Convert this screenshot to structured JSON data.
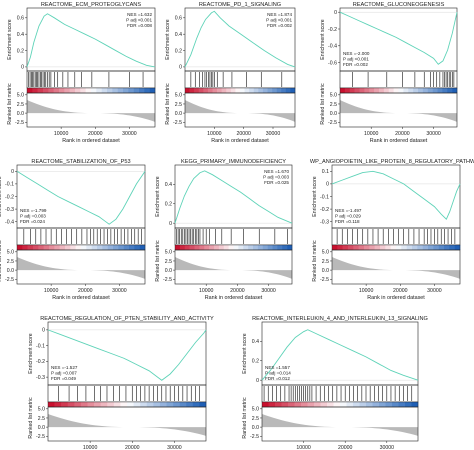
{
  "colors": {
    "curve": "#5fd3b8",
    "pos": "#c8102e",
    "neg": "#1f5fb5",
    "metric": "#b9b9b9",
    "frame": "#222222"
  },
  "shared": {
    "es_label": "Enrichment score",
    "metric_label": "Ranked list metric",
    "x_label": "Rank in ordered dataset",
    "x_ticks": [
      10000,
      20000,
      30000
    ],
    "x_tick_labels": [
      "10000",
      "20000",
      "30000"
    ],
    "metric_ticks": [
      "5.0",
      "2.5",
      "0.0",
      "-2.5"
    ]
  },
  "chart_data": [
    {
      "type": "line",
      "title": "REACTOME_ECM_PROTEOGLYCANS",
      "stats": [
        "NES =1.632",
        "P adj <0.001",
        "FDR =0.008"
      ],
      "y_ticks": [
        0.0,
        0.2,
        0.4,
        0.6
      ],
      "ylim": [
        -0.05,
        0.72
      ],
      "running_es": [
        [
          0,
          0
        ],
        [
          1000,
          0.12
        ],
        [
          2000,
          0.3
        ],
        [
          3500,
          0.5
        ],
        [
          5000,
          0.62
        ],
        [
          6000,
          0.65
        ],
        [
          8000,
          0.6
        ],
        [
          11000,
          0.52
        ],
        [
          14000,
          0.46
        ],
        [
          17000,
          0.4
        ],
        [
          20000,
          0.34
        ],
        [
          23000,
          0.27
        ],
        [
          26000,
          0.2
        ],
        [
          29000,
          0.13
        ],
        [
          32000,
          0.07
        ],
        [
          35000,
          0.02
        ],
        [
          37500,
          0
        ]
      ],
      "hits": [
        500,
        900,
        1300,
        1600,
        2000,
        2400,
        2800,
        3100,
        3500,
        3900,
        4300,
        4700,
        5100,
        5500,
        6000,
        6500,
        7000,
        8000,
        9000,
        10500,
        12000,
        14000,
        16000,
        19000,
        24000,
        30000,
        34000
      ]
    },
    {
      "type": "line",
      "title": "REACTOME_PD_1_SIGNALING",
      "stats": [
        "NES =1.874",
        "P adj <0.001",
        "FDR =0.002"
      ],
      "y_ticks": [
        0.0,
        0.2,
        0.4,
        0.6
      ],
      "ylim": [
        -0.05,
        0.72
      ],
      "running_es": [
        [
          0,
          0
        ],
        [
          2000,
          0.15
        ],
        [
          4000,
          0.35
        ],
        [
          5500,
          0.48
        ],
        [
          7000,
          0.58
        ],
        [
          9000,
          0.66
        ],
        [
          10000,
          0.68
        ],
        [
          12000,
          0.6
        ],
        [
          15000,
          0.5
        ],
        [
          19000,
          0.4
        ],
        [
          23000,
          0.3
        ],
        [
          27000,
          0.2
        ],
        [
          31000,
          0.11
        ],
        [
          35000,
          0.03
        ],
        [
          37500,
          0
        ]
      ],
      "hits": [
        2000,
        3500,
        5000,
        6000,
        6800,
        7400,
        8000,
        8500,
        9000,
        9500,
        10000,
        11000,
        13000,
        16000,
        21000,
        26000,
        33000
      ]
    },
    {
      "type": "line",
      "title": "REACTOME_GLUCONEOGENESIS",
      "stats": [
        "NES =-2.000",
        "P adj <0.001",
        "FDR =0.002"
      ],
      "y_ticks": [
        0.0,
        -0.2,
        -0.4,
        -0.6
      ],
      "ylim": [
        -0.7,
        0.05
      ],
      "running_es": [
        [
          0,
          0
        ],
        [
          3000,
          -0.05
        ],
        [
          6000,
          -0.1
        ],
        [
          9000,
          -0.15
        ],
        [
          12000,
          -0.2
        ],
        [
          15000,
          -0.25
        ],
        [
          18000,
          -0.3
        ],
        [
          21000,
          -0.36
        ],
        [
          24000,
          -0.42
        ],
        [
          27000,
          -0.48
        ],
        [
          30000,
          -0.55
        ],
        [
          31500,
          -0.62
        ],
        [
          33000,
          -0.58
        ],
        [
          34500,
          -0.45
        ],
        [
          36000,
          -0.25
        ],
        [
          37500,
          0
        ]
      ],
      "hits": [
        4000,
        9000,
        15000,
        20000,
        24000,
        27000,
        29000,
        30000,
        31000,
        32000,
        33000,
        33500,
        34000,
        34500,
        35000,
        35500,
        36000,
        36500
      ]
    },
    {
      "type": "line",
      "title": "REACTOME_STABILIZATION_OF_P53",
      "stats": [
        "NES =-1.799",
        "P adj =0.003",
        "FDR =0.024"
      ],
      "y_ticks": [
        0.0,
        -0.1,
        -0.2,
        -0.3,
        -0.4
      ],
      "ylim": [
        -0.45,
        0.05
      ],
      "running_es": [
        [
          0,
          0
        ],
        [
          3000,
          -0.05
        ],
        [
          6000,
          -0.1
        ],
        [
          9000,
          -0.15
        ],
        [
          12000,
          -0.2
        ],
        [
          15000,
          -0.24
        ],
        [
          18000,
          -0.28
        ],
        [
          21000,
          -0.32
        ],
        [
          24000,
          -0.36
        ],
        [
          26000,
          -0.4
        ],
        [
          27000,
          -0.42
        ],
        [
          29000,
          -0.38
        ],
        [
          31000,
          -0.3
        ],
        [
          33000,
          -0.2
        ],
        [
          35000,
          -0.1
        ],
        [
          37000,
          -0.02
        ],
        [
          37500,
          0
        ]
      ],
      "hits": [
        2000,
        4000,
        5500,
        7000,
        8500,
        10000,
        11500,
        13000,
        14500,
        16000,
        17500,
        19000,
        20500,
        21500,
        22500,
        23500,
        24500,
        25500,
        26500,
        27500,
        28500,
        29500,
        30500,
        31500,
        32500,
        33500,
        34500,
        35500,
        36500
      ]
    },
    {
      "type": "line",
      "title": "KEGG_PRIMARY_IMMUNODEFICIENCY",
      "stats": [
        "NES =1.670",
        "P adj =0.003",
        "FDR =0.025"
      ],
      "y_ticks": [
        0.0,
        0.2,
        0.4
      ],
      "ylim": [
        -0.05,
        0.6
      ],
      "running_es": [
        [
          0,
          0
        ],
        [
          1500,
          0.15
        ],
        [
          3000,
          0.28
        ],
        [
          4500,
          0.38
        ],
        [
          6000,
          0.46
        ],
        [
          8000,
          0.52
        ],
        [
          9500,
          0.54
        ],
        [
          12000,
          0.5
        ],
        [
          15000,
          0.44
        ],
        [
          18000,
          0.38
        ],
        [
          21000,
          0.32
        ],
        [
          24000,
          0.25
        ],
        [
          27000,
          0.18
        ],
        [
          30000,
          0.12
        ],
        [
          33000,
          0.06
        ],
        [
          37500,
          0
        ]
      ],
      "hits": [
        500,
        1000,
        1500,
        2000,
        2500,
        3000,
        3500,
        4000,
        4500,
        5000,
        5500,
        6000,
        6500,
        7000,
        7500,
        8000,
        9000,
        10000,
        11000,
        13000,
        15000,
        18000,
        22000,
        27000,
        32000,
        36000
      ]
    },
    {
      "type": "line",
      "title": "WP_ANGIOPOIETIN_LIKE_PROTEIN_8_REGULATORY_PATHWAY",
      "stats": [
        "NES =-1.497",
        "P adj =0.029",
        "FDR =0.118"
      ],
      "y_ticks": [
        0.1,
        0.0,
        -0.1,
        -0.2,
        -0.3
      ],
      "ylim": [
        -0.35,
        0.15
      ],
      "running_es": [
        [
          0,
          0
        ],
        [
          3000,
          0.03
        ],
        [
          6000,
          0.06
        ],
        [
          9000,
          0.09
        ],
        [
          12000,
          0.1
        ],
        [
          15000,
          0.08
        ],
        [
          18000,
          0.04
        ],
        [
          21000,
          0
        ],
        [
          24000,
          -0.06
        ],
        [
          27000,
          -0.12
        ],
        [
          30000,
          -0.18
        ],
        [
          32000,
          -0.24
        ],
        [
          33500,
          -0.28
        ],
        [
          34500,
          -0.22
        ],
        [
          35500,
          -0.14
        ],
        [
          36500,
          -0.06
        ],
        [
          37500,
          0
        ]
      ],
      "hits": [
        1500,
        3000,
        4500,
        6000,
        7500,
        9000,
        10500,
        12000,
        13500,
        15000,
        16500,
        18000,
        19500,
        21000,
        22500,
        24000,
        25500,
        27000,
        28000,
        29000,
        30000,
        31000,
        32000,
        33000,
        34000,
        35000,
        36000
      ]
    },
    {
      "type": "line",
      "title": "REACTOME_REGULATION_OF_PTEN_STABILITY_AND_ACTIVITY",
      "stats": [
        "NES =-1.527",
        "P adj =0.007",
        "FDR =0.049"
      ],
      "y_ticks": [
        0.0,
        -0.1,
        -0.2,
        -0.3
      ],
      "ylim": [
        -0.35,
        0.05
      ],
      "running_es": [
        [
          0,
          0
        ],
        [
          3000,
          -0.03
        ],
        [
          6000,
          -0.06
        ],
        [
          9000,
          -0.09
        ],
        [
          12000,
          -0.12
        ],
        [
          15000,
          -0.15
        ],
        [
          18000,
          -0.18
        ],
        [
          21000,
          -0.22
        ],
        [
          24000,
          -0.26
        ],
        [
          26000,
          -0.3
        ],
        [
          27000,
          -0.32
        ],
        [
          29000,
          -0.28
        ],
        [
          31000,
          -0.22
        ],
        [
          33000,
          -0.15
        ],
        [
          35000,
          -0.08
        ],
        [
          37000,
          -0.02
        ],
        [
          37500,
          0
        ]
      ],
      "hits": [
        2500,
        5000,
        7000,
        9000,
        11000,
        12500,
        14000,
        15500,
        17000,
        18500,
        20000,
        21000,
        22000,
        23000,
        24000,
        25000,
        26000,
        27000,
        28000,
        29000,
        30000,
        31000,
        32000,
        33000,
        34000,
        35000,
        36000
      ]
    },
    {
      "type": "line",
      "title": "REACTOME_INTERLEUKIN_4_AND_INTERLEUKIN_13_SIGNALING",
      "stats": [
        "NES =1.557",
        "P adj =0.014",
        "FDR =0.012"
      ],
      "y_ticks": [
        0.0,
        0.2,
        0.4
      ],
      "ylim": [
        -0.05,
        0.6
      ],
      "running_es": [
        [
          0,
          0
        ],
        [
          2000,
          0.1
        ],
        [
          4000,
          0.22
        ],
        [
          6000,
          0.34
        ],
        [
          8000,
          0.44
        ],
        [
          10000,
          0.5
        ],
        [
          11000,
          0.52
        ],
        [
          13000,
          0.48
        ],
        [
          16000,
          0.42
        ],
        [
          19000,
          0.36
        ],
        [
          22000,
          0.3
        ],
        [
          25000,
          0.24
        ],
        [
          28000,
          0.17
        ],
        [
          31000,
          0.1
        ],
        [
          34000,
          0.05
        ],
        [
          37500,
          0
        ]
      ],
      "hits": [
        500,
        1500,
        2500,
        3500,
        4500,
        5500,
        6500,
        7000,
        7500,
        8000,
        8500,
        9000,
        9500,
        10000,
        10500,
        11000,
        11500,
        12000,
        13000,
        14000,
        15000,
        16000,
        17000,
        18000,
        19000,
        20000,
        21000,
        22000,
        23000,
        24000,
        25000,
        26000,
        27000,
        28000,
        29000,
        30000,
        31000,
        32000,
        33000,
        34000,
        35000,
        36000
      ]
    }
  ]
}
